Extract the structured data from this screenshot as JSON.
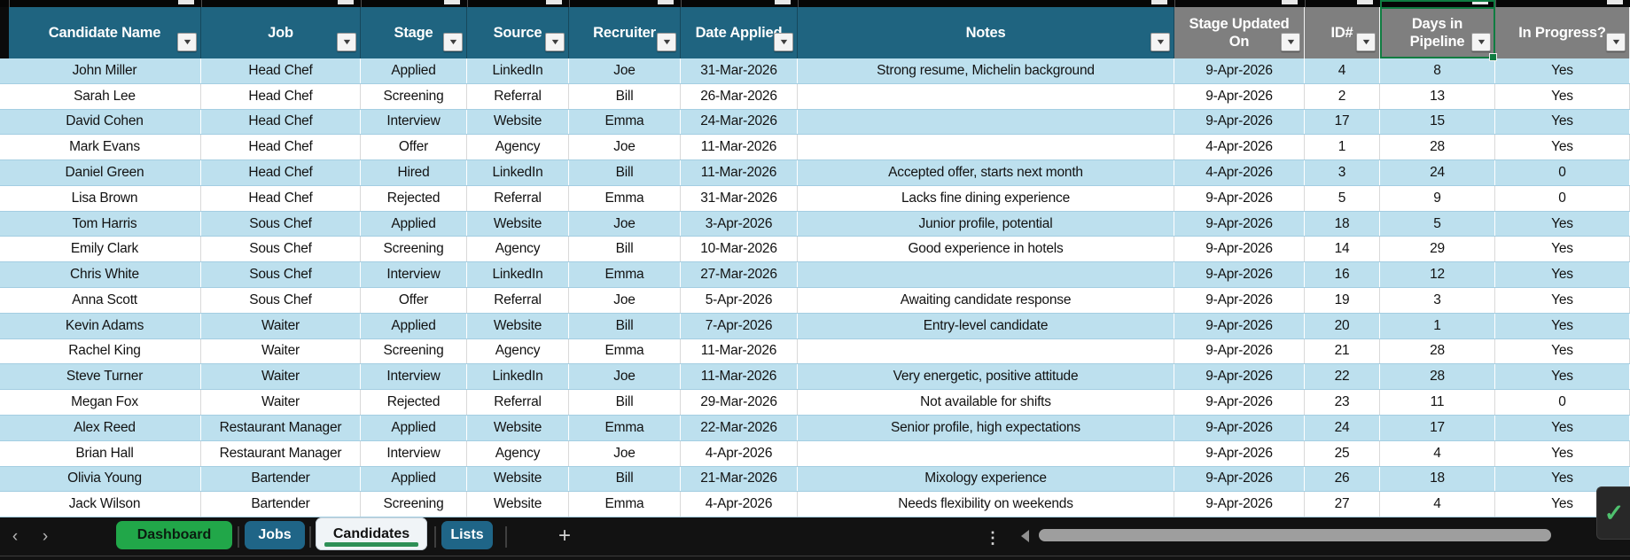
{
  "table": {
    "columns": [
      {
        "label": "Candidate Name",
        "group": "teal"
      },
      {
        "label": "Job",
        "group": "teal"
      },
      {
        "label": "Stage",
        "group": "teal"
      },
      {
        "label": "Source",
        "group": "teal"
      },
      {
        "label": "Recruiter",
        "group": "teal"
      },
      {
        "label": "Date Applied",
        "group": "teal"
      },
      {
        "label": "Notes",
        "group": "teal"
      },
      {
        "label": "Stage Updated On",
        "group": "gray"
      },
      {
        "label": "ID#",
        "group": "gray"
      },
      {
        "label": "Days in Pipeline",
        "group": "gray",
        "selected": true
      },
      {
        "label": "In Progress?",
        "group": "gray"
      }
    ],
    "rows": [
      [
        "John Miller",
        "Head Chef",
        "Applied",
        "LinkedIn",
        "Joe",
        "31-Mar-2026",
        "Strong resume, Michelin background",
        "9-Apr-2026",
        "4",
        "8",
        "Yes"
      ],
      [
        "Sarah Lee",
        "Head Chef",
        "Screening",
        "Referral",
        "Bill",
        "26-Mar-2026",
        "",
        "9-Apr-2026",
        "2",
        "13",
        "Yes"
      ],
      [
        "David Cohen",
        "Head Chef",
        "Interview",
        "Website",
        "Emma",
        "24-Mar-2026",
        "",
        "9-Apr-2026",
        "17",
        "15",
        "Yes"
      ],
      [
        "Mark Evans",
        "Head Chef",
        "Offer",
        "Agency",
        "Joe",
        "11-Mar-2026",
        "",
        "4-Apr-2026",
        "1",
        "28",
        "Yes"
      ],
      [
        "Daniel Green",
        "Head Chef",
        "Hired",
        "LinkedIn",
        "Bill",
        "11-Mar-2026",
        "Accepted offer, starts next month",
        "4-Apr-2026",
        "3",
        "24",
        "0"
      ],
      [
        "Lisa Brown",
        "Head Chef",
        "Rejected",
        "Referral",
        "Emma",
        "31-Mar-2026",
        "Lacks fine dining experience",
        "9-Apr-2026",
        "5",
        "9",
        "0"
      ],
      [
        "Tom Harris",
        "Sous Chef",
        "Applied",
        "Website",
        "Joe",
        "3-Apr-2026",
        "Junior profile, potential",
        "9-Apr-2026",
        "18",
        "5",
        "Yes"
      ],
      [
        "Emily Clark",
        "Sous Chef",
        "Screening",
        "Agency",
        "Bill",
        "10-Mar-2026",
        "Good experience in hotels",
        "9-Apr-2026",
        "14",
        "29",
        "Yes"
      ],
      [
        "Chris White",
        "Sous Chef",
        "Interview",
        "LinkedIn",
        "Emma",
        "27-Mar-2026",
        "",
        "9-Apr-2026",
        "16",
        "12",
        "Yes"
      ],
      [
        "Anna Scott",
        "Sous Chef",
        "Offer",
        "Referral",
        "Joe",
        "5-Apr-2026",
        "Awaiting candidate response",
        "9-Apr-2026",
        "19",
        "3",
        "Yes"
      ],
      [
        "Kevin Adams",
        "Waiter",
        "Applied",
        "Website",
        "Bill",
        "7-Apr-2026",
        "Entry-level candidate",
        "9-Apr-2026",
        "20",
        "1",
        "Yes"
      ],
      [
        "Rachel King",
        "Waiter",
        "Screening",
        "Agency",
        "Emma",
        "11-Mar-2026",
        "",
        "9-Apr-2026",
        "21",
        "28",
        "Yes"
      ],
      [
        "Steve Turner",
        "Waiter",
        "Interview",
        "LinkedIn",
        "Joe",
        "11-Mar-2026",
        "Very energetic, positive attitude",
        "9-Apr-2026",
        "22",
        "28",
        "Yes"
      ],
      [
        "Megan Fox",
        "Waiter",
        "Rejected",
        "Referral",
        "Bill",
        "29-Mar-2026",
        "Not available for shifts",
        "9-Apr-2026",
        "23",
        "11",
        "0"
      ],
      [
        "Alex Reed",
        "Restaurant Manager",
        "Applied",
        "Website",
        "Emma",
        "22-Mar-2026",
        "Senior profile, high expectations",
        "9-Apr-2026",
        "24",
        "17",
        "Yes"
      ],
      [
        "Brian Hall",
        "Restaurant Manager",
        "Interview",
        "Agency",
        "Joe",
        "4-Apr-2026",
        "",
        "9-Apr-2026",
        "25",
        "4",
        "Yes"
      ],
      [
        "Olivia Young",
        "Bartender",
        "Applied",
        "Website",
        "Bill",
        "21-Mar-2026",
        "Mixology experience",
        "9-Apr-2026",
        "26",
        "18",
        "Yes"
      ],
      [
        "Jack Wilson",
        "Bartender",
        "Screening",
        "Website",
        "Emma",
        "4-Apr-2026",
        "Needs flexibility on weekends",
        "9-Apr-2026",
        "27",
        "4",
        "Yes"
      ]
    ],
    "filter_icon": "▼"
  },
  "sheet_tabs": {
    "prev_icon": "‹",
    "next_icon": "›",
    "tabs": [
      {
        "label": "Dashboard",
        "style": "green",
        "active": false
      },
      {
        "label": "Jobs",
        "style": "blue",
        "active": false
      },
      {
        "label": "Candidates",
        "style": "active",
        "active": true
      },
      {
        "label": "Lists",
        "style": "blue",
        "active": false
      }
    ],
    "add_icon": "+",
    "options_icon": "⋮",
    "check_icon": "✓"
  },
  "colors": {
    "header_teal": "#1F6480",
    "header_gray": "#7F7F7F",
    "band_blue": "#BDE0EE",
    "grid_blue": "#A4CEE2",
    "tab_green": "#21A749",
    "tab_blue": "#1F6587",
    "active_tab_underline": "#2E8F56",
    "selection_green": "#0F7C41",
    "scrollbar_thumb": "#9E9E9E"
  }
}
